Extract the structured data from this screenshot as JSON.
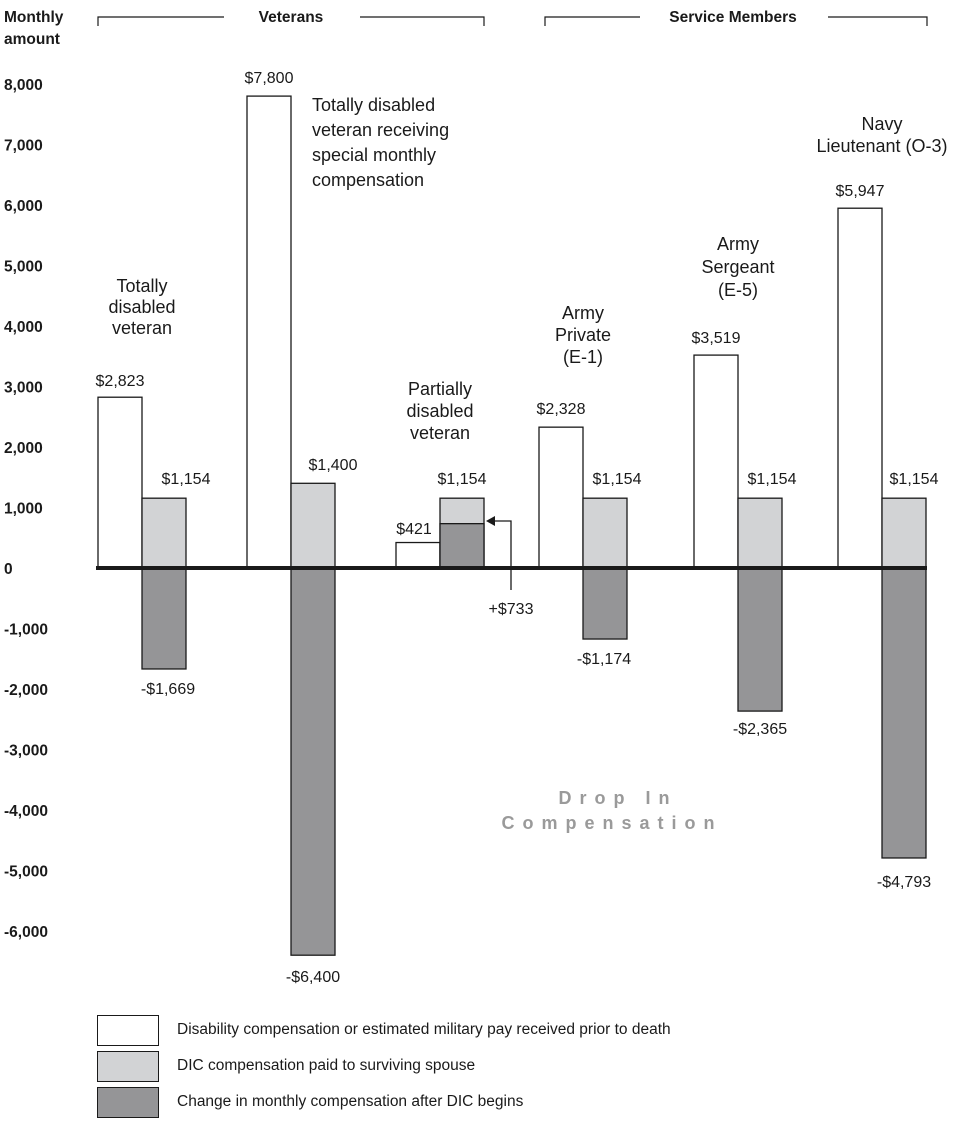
{
  "chart_data": {
    "type": "bar",
    "ylabel": [
      "Monthly",
      "amount"
    ],
    "ylim": [
      -6000,
      8000
    ],
    "yticks": [
      8000,
      7000,
      6000,
      5000,
      4000,
      3000,
      2000,
      1000,
      0,
      -1000,
      -2000,
      -3000,
      -4000,
      -5000,
      -6000
    ],
    "ytick_labels": [
      "8,000",
      "7,000",
      "6,000",
      "5,000",
      "4,000",
      "3,000",
      "2,000",
      "1,000",
      "0",
      "-1,000",
      "-2,000",
      "-3,000",
      "-4,000",
      "-5,000",
      "-6,000"
    ],
    "groups": [
      {
        "name": "Veterans",
        "members": [
          0,
          1,
          2
        ]
      },
      {
        "name": "Service Members",
        "members": [
          3,
          4,
          5
        ]
      }
    ],
    "categories": [
      "Totally disabled veteran",
      "Totally disabled veteran receiving special monthly compensation",
      "Partially disabled veteran",
      "Army Private (E-1)",
      "Army Sergeant (E-5)",
      "Navy Lieutenant (O-3)"
    ],
    "category_label_lines": [
      [
        "Totally",
        "disabled",
        "veteran"
      ],
      [
        "Totally disabled",
        "veteran receiving",
        "special monthly",
        "compensation"
      ],
      [
        "Partially",
        "disabled",
        "veteran"
      ],
      [
        "Army",
        "Private",
        "(E-1)"
      ],
      [
        "Army",
        "Sergeant",
        "(E-5)"
      ],
      [
        "Navy",
        "Lieutenant (O-3)"
      ]
    ],
    "series": [
      {
        "name": "Disability compensation or estimated military pay received prior to death",
        "values": [
          2823,
          7800,
          421,
          2328,
          3519,
          5947
        ],
        "labels": [
          "$2,823",
          "$7,800",
          "$421",
          "$2,328",
          "$3,519",
          "$5,947"
        ],
        "color": "#ffffff"
      },
      {
        "name": "DIC compensation paid to surviving spouse",
        "values": [
          1154,
          1400,
          1154,
          1154,
          1154,
          1154
        ],
        "labels": [
          "$1,154",
          "$1,400",
          "$1,154",
          "$1,154",
          "$1,154",
          "$1,154"
        ],
        "color": "#d2d3d5"
      },
      {
        "name": "Change in monthly compensation after DIC begins",
        "values": [
          -1669,
          -6400,
          733,
          -1174,
          -2365,
          -4793
        ],
        "labels": [
          "-$1,669",
          "-$6,400",
          "+$733",
          "-$1,174",
          "-$2,365",
          "-$4,793"
        ],
        "color": "#959597"
      }
    ],
    "annotation": [
      "Drop In",
      "Compensation"
    ],
    "grid": false,
    "legend_position": "bottom"
  },
  "legend": [
    {
      "text": "Disability compensation or estimated military pay received prior to death",
      "color": "#ffffff"
    },
    {
      "text": "DIC compensation paid to surviving spouse",
      "color": "#d2d3d5"
    },
    {
      "text": "Change in monthly compensation after DIC begins",
      "color": "#959597"
    }
  ]
}
